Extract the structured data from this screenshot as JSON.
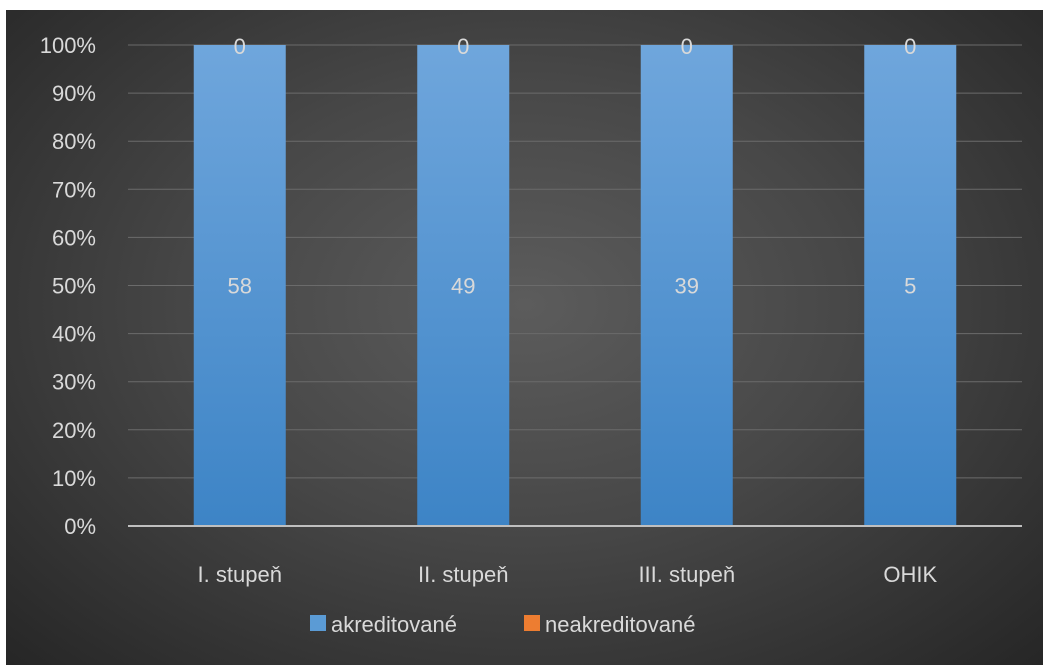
{
  "chart_data": {
    "type": "bar",
    "stacked": "percent",
    "categories": [
      "I. stupeň",
      "II. stupeň",
      "III. stupeň",
      "OHIK"
    ],
    "series": [
      {
        "name": "akreditované",
        "values": [
          58,
          49,
          39,
          5
        ],
        "color": "#5b9bd5"
      },
      {
        "name": "neakreditované",
        "values": [
          0,
          0,
          0,
          0
        ],
        "color": "#ed7d31"
      }
    ],
    "y_ticks": [
      "0%",
      "10%",
      "20%",
      "30%",
      "40%",
      "50%",
      "60%",
      "70%",
      "80%",
      "90%",
      "100%"
    ],
    "ylim": [
      0,
      100
    ],
    "grid": true,
    "legend": "bottom",
    "title": "",
    "xlabel": "",
    "ylabel": ""
  }
}
